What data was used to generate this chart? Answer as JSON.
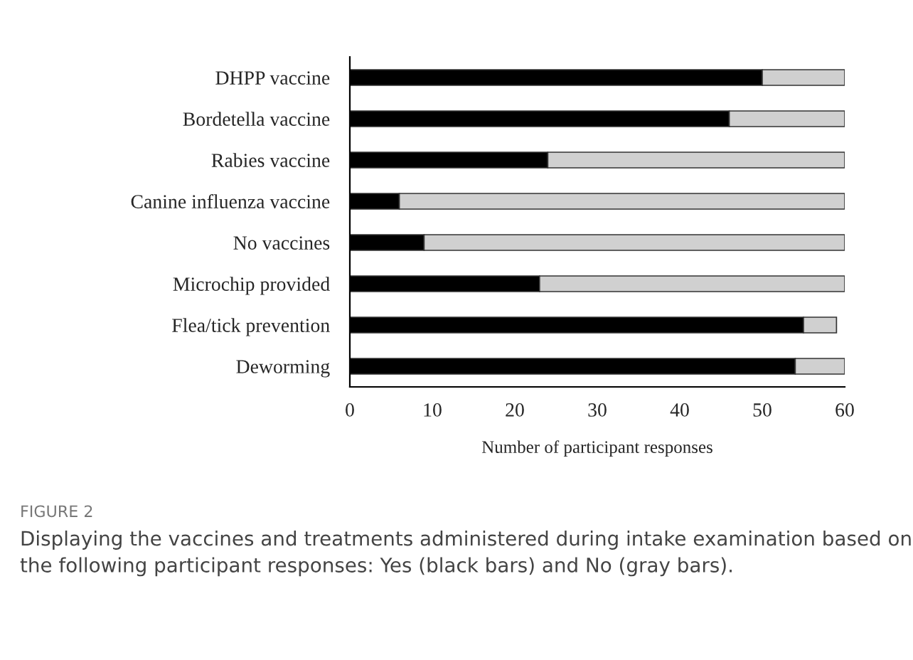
{
  "chart_data": {
    "type": "bar",
    "orientation": "horizontal",
    "stacked": true,
    "xlabel": "Number of participant responses",
    "categories": [
      "DHPP vaccine",
      "Bordetella vaccine",
      "Rabies vaccine",
      "Canine influenza vaccine",
      "No vaccines",
      "Microchip provided",
      "Flea/tick prevention",
      "Deworming"
    ],
    "series": [
      {
        "color": "#000000",
        "values": [
          50,
          46,
          24,
          6,
          9,
          23,
          55,
          54
        ]
      },
      {
        "color": "#d0d0d0",
        "values": [
          10,
          14,
          36,
          54,
          51,
          37,
          4,
          6
        ]
      }
    ],
    "xlim": [
      0,
      60
    ],
    "xticks": [
      0,
      10,
      20,
      30,
      40,
      50,
      60
    ],
    "grid": false,
    "legend": false,
    "annotations": [
      "FIGURE 2",
      "Displaying the vaccines and treatments administered during intake examination based on the following participant responses: Yes (black bars) and No (gray bars)."
    ]
  }
}
